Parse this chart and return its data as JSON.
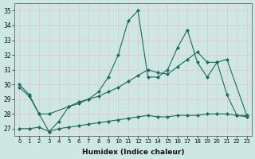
{
  "xlabel": "Humidex (Indice chaleur)",
  "ylabel": "",
  "background_color": "#cde8e3",
  "grid_color": "#e8c8c8",
  "line_color": "#1a6b5e",
  "xlim": [
    -0.5,
    23.5
  ],
  "ylim": [
    26.5,
    35.5
  ],
  "yticks": [
    27,
    28,
    29,
    30,
    31,
    32,
    33,
    34,
    35
  ],
  "xticks": [
    0,
    1,
    2,
    3,
    4,
    5,
    6,
    7,
    8,
    9,
    10,
    11,
    12,
    13,
    14,
    15,
    16,
    17,
    18,
    19,
    20,
    21,
    22,
    23
  ],
  "line1_x": [
    0,
    1,
    2,
    3,
    4,
    5,
    6,
    7,
    8,
    9,
    10,
    11,
    12,
    13,
    14,
    15,
    16,
    17,
    18,
    19,
    20,
    21,
    22,
    23
  ],
  "line1_y": [
    30.0,
    29.3,
    28.0,
    26.8,
    27.5,
    28.5,
    28.7,
    29.0,
    29.5,
    30.5,
    32.0,
    34.3,
    35.0,
    30.5,
    30.5,
    31.0,
    32.5,
    33.7,
    31.5,
    30.5,
    31.5,
    29.3,
    27.9,
    27.9
  ],
  "line2_x": [
    0,
    1,
    2,
    3,
    5,
    6,
    7,
    8,
    9,
    10,
    11,
    12,
    13,
    14,
    15,
    16,
    17,
    18,
    19,
    20,
    21,
    23
  ],
  "line2_y": [
    29.8,
    29.2,
    28.0,
    28.0,
    28.5,
    28.8,
    29.0,
    29.2,
    29.5,
    29.8,
    30.2,
    30.6,
    31.0,
    30.8,
    30.7,
    31.2,
    31.7,
    32.2,
    31.5,
    31.5,
    31.7,
    27.9
  ],
  "line3_x": [
    0,
    1,
    2,
    3,
    4,
    5,
    6,
    7,
    8,
    9,
    10,
    11,
    12,
    13,
    14,
    15,
    16,
    17,
    18,
    19,
    20,
    21,
    22,
    23
  ],
  "line3_y": [
    27.0,
    27.0,
    27.1,
    26.8,
    27.0,
    27.1,
    27.2,
    27.3,
    27.4,
    27.5,
    27.6,
    27.7,
    27.8,
    27.9,
    27.8,
    27.8,
    27.9,
    27.9,
    27.9,
    28.0,
    28.0,
    28.0,
    27.9,
    27.8
  ]
}
